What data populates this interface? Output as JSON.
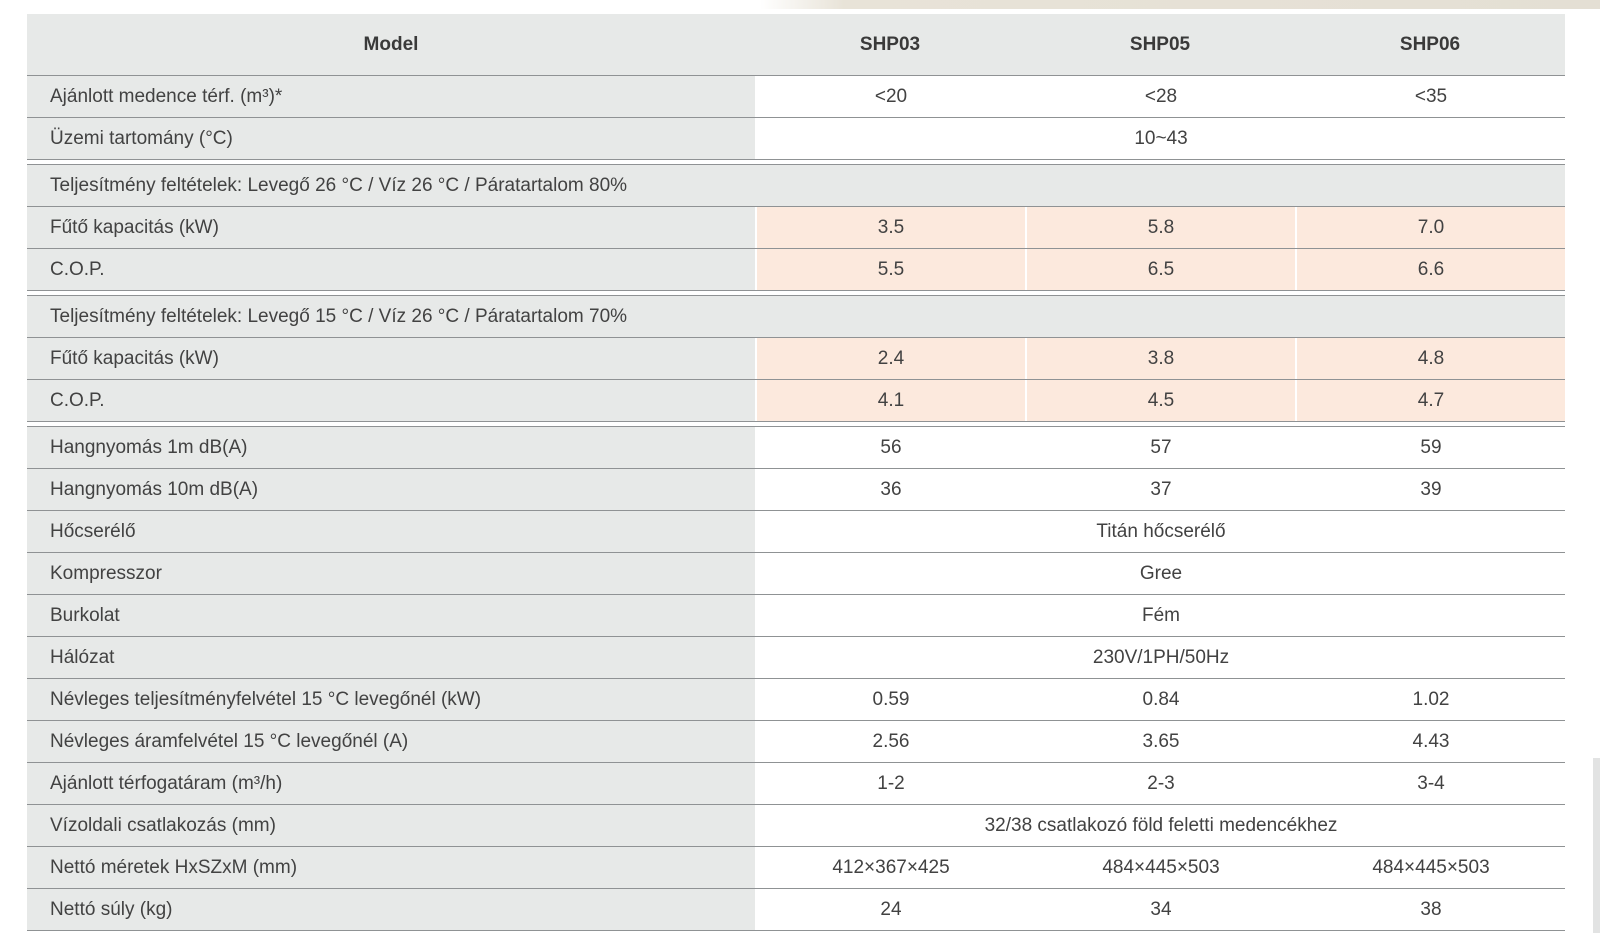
{
  "table": {
    "columns": [
      "Model",
      "SHP03",
      "SHP05",
      "SHP06"
    ],
    "colors": {
      "label_bg": "#e7e9e8",
      "highlight_bg": "#fce9dd",
      "border": "#8f9294",
      "text": "#424242"
    },
    "rows": [
      {
        "type": "data",
        "label": "Ajánlott medence térf. (m³)*",
        "values": [
          "<20",
          "<28",
          "<35"
        ]
      },
      {
        "type": "span",
        "label": "Üzemi tartomány (°C)",
        "value": "10~43"
      },
      {
        "type": "section",
        "label": "Teljesítmény feltételek: Levegő 26 °C / Víz 26 °C / Páratartalom 80%",
        "group_start": true
      },
      {
        "type": "data",
        "label": "Fűtő kapacitás (kW)",
        "values": [
          "3.5",
          "5.8",
          "7.0"
        ],
        "highlight": true
      },
      {
        "type": "data",
        "label": "C.O.P.",
        "values": [
          "5.5",
          "6.5",
          "6.6"
        ],
        "highlight": true
      },
      {
        "type": "section",
        "label": "Teljesítmény feltételek: Levegő 15 °C / Víz 26 °C / Páratartalom 70%",
        "group_start": true
      },
      {
        "type": "data",
        "label": "Fűtő kapacitás (kW)",
        "values": [
          "2.4",
          "3.8",
          "4.8"
        ],
        "highlight": true
      },
      {
        "type": "data",
        "label": "C.O.P.",
        "values": [
          "4.1",
          "4.5",
          "4.7"
        ],
        "highlight": true
      },
      {
        "type": "data",
        "label": "Hangnyomás 1m dB(A)",
        "values": [
          "56",
          "57",
          "59"
        ],
        "group_start": true
      },
      {
        "type": "data",
        "label": "Hangnyomás 10m dB(A)",
        "values": [
          "36",
          "37",
          "39"
        ]
      },
      {
        "type": "span",
        "label": "Hőcserélő",
        "value": "Titán hőcserélő"
      },
      {
        "type": "span",
        "label": "Kompresszor",
        "value": "Gree"
      },
      {
        "type": "span",
        "label": "Burkolat",
        "value": "Fém"
      },
      {
        "type": "span",
        "label": "Hálózat",
        "value": "230V/1PH/50Hz"
      },
      {
        "type": "data",
        "label": "Névleges teljesítményfelvétel 15 °C levegőnél (kW)",
        "values": [
          "0.59",
          "0.84",
          "1.02"
        ]
      },
      {
        "type": "data",
        "label": "Névleges áramfelvétel 15 °C levegőnél (A)",
        "values": [
          "2.56",
          "3.65",
          "4.43"
        ]
      },
      {
        "type": "data",
        "label": "Ajánlott térfogatáram (m³/h)",
        "values": [
          "1-2",
          "2-3",
          "3-4"
        ]
      },
      {
        "type": "span",
        "label": "Vízoldali csatlakozás (mm)",
        "value": "32/38 csatlakozó föld feletti medencékhez"
      },
      {
        "type": "data",
        "label": "Nettó méretek HxSZxM (mm)",
        "values": [
          "412×367×425",
          "484×445×503",
          "484×445×503"
        ]
      },
      {
        "type": "data",
        "label": "Nettó súly (kg)",
        "values": [
          "24",
          "34",
          "38"
        ]
      }
    ]
  }
}
